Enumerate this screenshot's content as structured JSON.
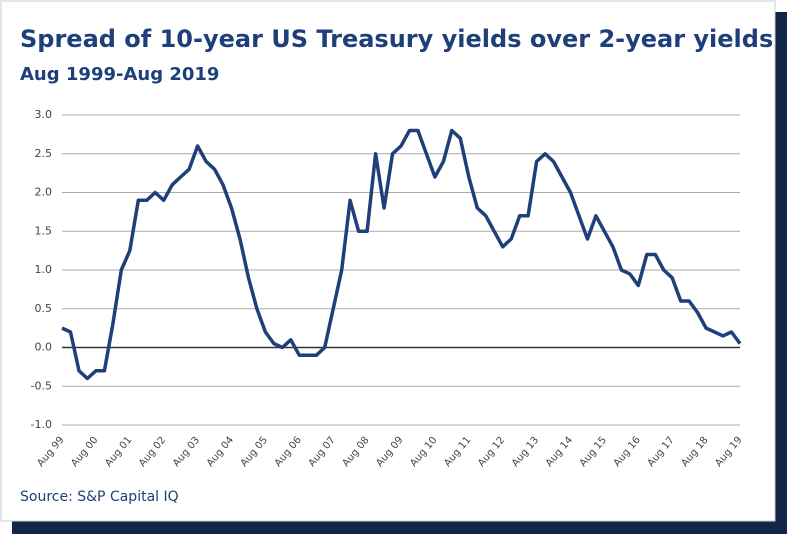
{
  "chart_data": {
    "type": "line",
    "title": "Spread of 10-year US Treasury yields over 2-year yields",
    "subtitle": "Aug 1999-Aug 2019",
    "source": "Source: S&P Capital IQ",
    "x": [
      "1999-08",
      "1999-11",
      "2000-02",
      "2000-05",
      "2000-08",
      "2000-11",
      "2001-02",
      "2001-05",
      "2001-08",
      "2001-11",
      "2002-02",
      "2002-05",
      "2002-08",
      "2002-11",
      "2003-02",
      "2003-05",
      "2003-08",
      "2003-11",
      "2004-02",
      "2004-05",
      "2004-08",
      "2004-11",
      "2005-02",
      "2005-05",
      "2005-08",
      "2005-11",
      "2006-02",
      "2006-05",
      "2006-08",
      "2006-11",
      "2007-02",
      "2007-05",
      "2007-08",
      "2007-11",
      "2008-02",
      "2008-05",
      "2008-08",
      "2008-11",
      "2009-02",
      "2009-05",
      "2009-08",
      "2009-11",
      "2010-02",
      "2010-05",
      "2010-08",
      "2010-11",
      "2011-02",
      "2011-05",
      "2011-08",
      "2011-11",
      "2012-02",
      "2012-05",
      "2012-08",
      "2012-11",
      "2013-02",
      "2013-05",
      "2013-08",
      "2013-11",
      "2014-02",
      "2014-05",
      "2014-08",
      "2014-11",
      "2015-02",
      "2015-05",
      "2015-08",
      "2015-11",
      "2016-02",
      "2016-05",
      "2016-08",
      "2016-11",
      "2017-02",
      "2017-05",
      "2017-08",
      "2017-11",
      "2018-02",
      "2018-05",
      "2018-08",
      "2018-11",
      "2019-02",
      "2019-05",
      "2019-08"
    ],
    "series": [
      {
        "name": "10Y-2Y spread",
        "color": "#1f3f7a",
        "values": [
          0.25,
          0.2,
          -0.3,
          -0.4,
          -0.3,
          -0.3,
          0.3,
          1.0,
          1.25,
          1.9,
          1.9,
          2.0,
          1.9,
          2.1,
          2.2,
          2.3,
          2.6,
          2.4,
          2.3,
          2.1,
          1.8,
          1.4,
          0.9,
          0.5,
          0.2,
          0.05,
          0.0,
          0.1,
          -0.1,
          -0.1,
          -0.1,
          0.0,
          0.5,
          1.0,
          1.9,
          1.5,
          1.5,
          2.5,
          1.8,
          2.5,
          2.6,
          2.8,
          2.8,
          2.5,
          2.2,
          2.4,
          2.8,
          2.7,
          2.2,
          1.8,
          1.7,
          1.5,
          1.3,
          1.4,
          1.7,
          1.7,
          2.4,
          2.5,
          2.4,
          2.2,
          2.0,
          1.7,
          1.4,
          1.7,
          1.5,
          1.3,
          1.0,
          0.95,
          0.8,
          1.2,
          1.2,
          1.0,
          0.9,
          0.6,
          0.6,
          0.45,
          0.25,
          0.2,
          0.15,
          0.2,
          0.05
        ]
      }
    ],
    "xlim": [
      "1999-08",
      "2019-08"
    ],
    "xticks": [
      {
        "value": "1999-08",
        "label": "Aug 99"
      },
      {
        "value": "2000-08",
        "label": "Aug 00"
      },
      {
        "value": "2001-08",
        "label": "Aug 01"
      },
      {
        "value": "2002-08",
        "label": "Aug 02"
      },
      {
        "value": "2003-08",
        "label": "Aug 03"
      },
      {
        "value": "2004-08",
        "label": "Aug 04"
      },
      {
        "value": "2005-08",
        "label": "Aug 05"
      },
      {
        "value": "2006-08",
        "label": "Aug 06"
      },
      {
        "value": "2007-08",
        "label": "Aug 07"
      },
      {
        "value": "2008-08",
        "label": "Aug 08"
      },
      {
        "value": "2009-08",
        "label": "Aug 09"
      },
      {
        "value": "2010-08",
        "label": "Aug 10"
      },
      {
        "value": "2011-08",
        "label": "Aug 11"
      },
      {
        "value": "2012-08",
        "label": "Aug 12"
      },
      {
        "value": "2013-08",
        "label": "Aug 13"
      },
      {
        "value": "2014-08",
        "label": "Aug 14"
      },
      {
        "value": "2015-08",
        "label": "Aug 15"
      },
      {
        "value": "2016-08",
        "label": "Aug 16"
      },
      {
        "value": "2017-08",
        "label": "Aug 17"
      },
      {
        "value": "2018-08",
        "label": "Aug 18"
      },
      {
        "value": "2019-08",
        "label": "Aug 19"
      }
    ],
    "ylim": [
      -1,
      3
    ],
    "yticks": [
      {
        "value": 3,
        "label": "3.0"
      },
      2.5,
      {
        "value": 2,
        "label": "2.0"
      },
      1.5,
      {
        "value": 1,
        "label": "1.0"
      },
      0.5,
      {
        "value": 0,
        "label": "0.0"
      },
      -0.5,
      {
        "value": -1,
        "label": "-1.0"
      }
    ],
    "grid": true
  }
}
